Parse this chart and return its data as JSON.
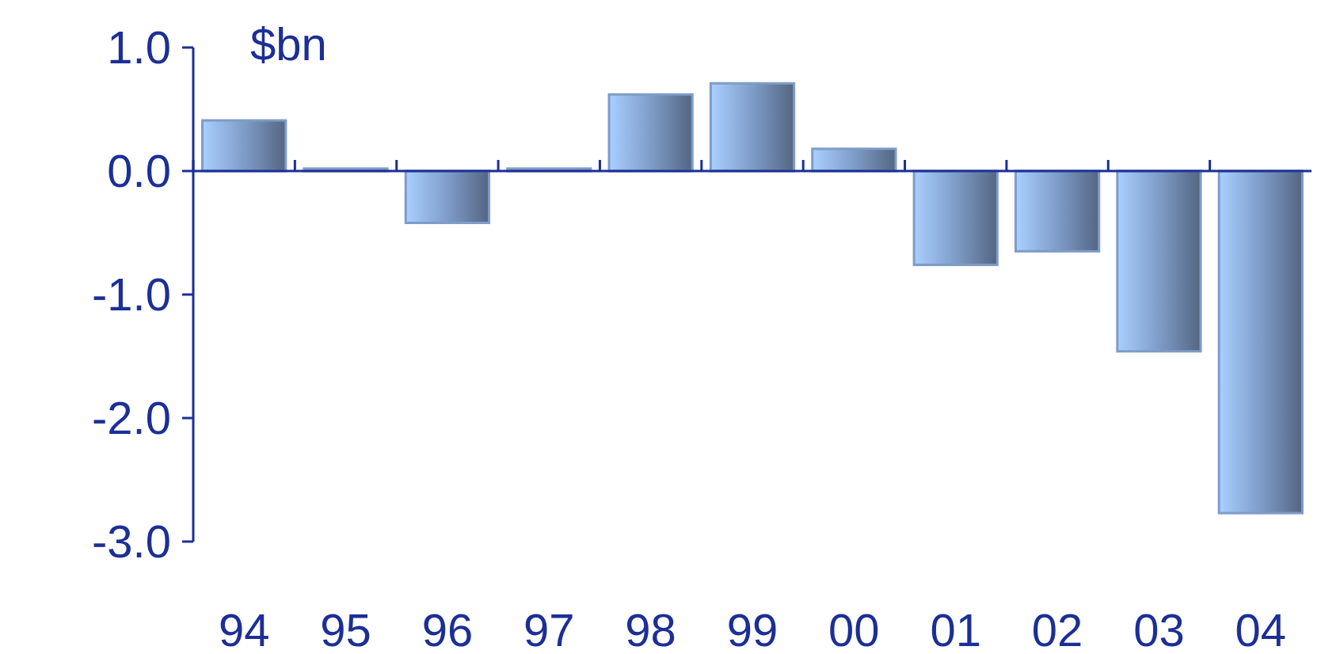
{
  "chart_data": {
    "type": "bar",
    "ylabel": "$bn",
    "categories": [
      "94",
      "95",
      "96",
      "97",
      "98",
      "99",
      "00",
      "01",
      "02",
      "03",
      "04"
    ],
    "values": [
      0.41,
      0.02,
      -0.42,
      0.02,
      0.62,
      0.71,
      0.18,
      -0.76,
      -0.65,
      -1.46,
      -2.77
    ],
    "color": "#7f9cc8",
    "ylim": [
      -3,
      1
    ],
    "yticks": [
      {
        "value": 1,
        "label": "1.0"
      },
      {
        "value": 0,
        "label": "0.0"
      },
      {
        "value": -1,
        "label": "-1.0"
      },
      {
        "value": -2,
        "label": "-2.0"
      },
      {
        "value": -3,
        "label": "-3.0"
      }
    ],
    "ref_lines": [
      {
        "axis": "y",
        "value": 0,
        "color": "#1c2f96"
      }
    ],
    "grid": false
  }
}
